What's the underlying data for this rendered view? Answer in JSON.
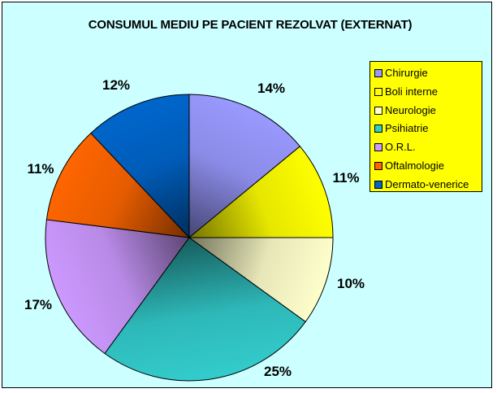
{
  "chart_data": {
    "type": "pie",
    "title": "CONSUMUL MEDIU PE PACIENT REZOLVAT (EXTERNAT)",
    "legend_position": "right",
    "series": [
      {
        "categories": [
          "Chirurgie",
          "Boli interne",
          "Neurologie",
          "Psihiatrie",
          "O.R.L.",
          "Oftalmologie",
          "Dermato-venerice"
        ],
        "values": [
          14,
          11,
          10,
          25,
          17,
          11,
          12
        ],
        "labels": [
          "14%",
          "11%",
          "10%",
          "25%",
          "17%",
          "11%",
          "12%"
        ],
        "colors": [
          "#9999ff",
          "#ffff00",
          "#ffffcc",
          "#33cccc",
          "#cc99ff",
          "#ff6600",
          "#0066cc"
        ]
      }
    ],
    "background_color": "#ccffff",
    "legend_background": "#ffff00"
  }
}
